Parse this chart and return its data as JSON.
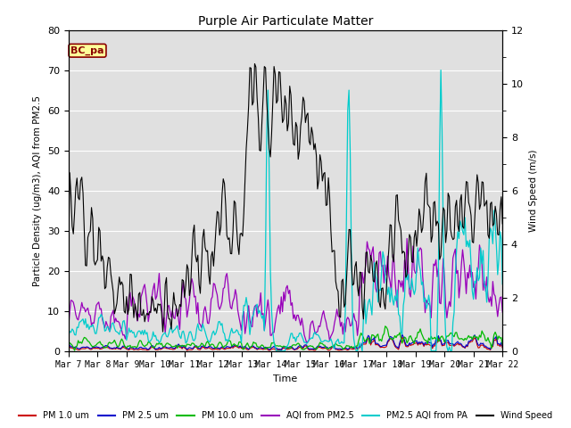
{
  "title": "Purple Air Particulate Matter",
  "xlabel": "Time",
  "ylabel_left": "Particle Density (ug/m3), AQI from PM2.5",
  "ylabel_right": "Wind Speed (m/s)",
  "ylim_left": [
    0,
    80
  ],
  "ylim_right": [
    0,
    12
  ],
  "annotation_text": "BC_pa",
  "annotation_color": "#8B0000",
  "annotation_bg": "#FFFF99",
  "background_color": "#E0E0E0",
  "series_colors": {
    "pm1": "#CC0000",
    "pm25": "#0000CC",
    "pm10": "#00BB00",
    "aqi_pm25": "#9900BB",
    "aqi_pa": "#00CCCC",
    "wind": "#000000"
  },
  "x_tick_labels": [
    "Mar 7",
    "Mar 8",
    "Mar 9",
    "Mar 10",
    "Mar 11",
    "Mar 12",
    "Mar 13",
    "Mar 14",
    "Mar 15",
    "Mar 16",
    "Mar 17",
    "Mar 18",
    "Mar 19",
    "Mar 20",
    "Mar 21",
    "Mar 22"
  ],
  "num_points": 360,
  "figsize": [
    6.4,
    4.8
  ],
  "dpi": 100
}
